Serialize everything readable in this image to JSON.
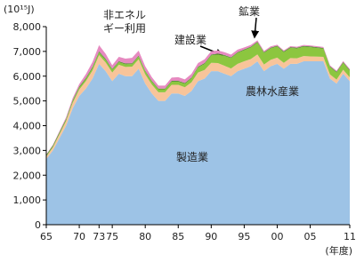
{
  "chart_data": {
    "type": "stacked_area",
    "y_label": "(10¹⁵J)",
    "x_label": "(年度)",
    "x": [
      1965,
      1966,
      1967,
      1968,
      1969,
      1970,
      1971,
      1972,
      1973,
      1974,
      1975,
      1976,
      1977,
      1978,
      1979,
      1980,
      1981,
      1982,
      1983,
      1984,
      1985,
      1986,
      1987,
      1988,
      1989,
      1990,
      1991,
      1992,
      1993,
      1994,
      1995,
      1996,
      1997,
      1998,
      1999,
      2000,
      2001,
      2002,
      2003,
      2004,
      2005,
      2006,
      2007,
      2008,
      2009,
      2010,
      2011
    ],
    "series": [
      {
        "name": "製造業",
        "color": "#9dc3e6",
        "values": [
          2650,
          3000,
          3500,
          4000,
          4700,
          5200,
          5500,
          5900,
          6500,
          6200,
          5800,
          6100,
          6000,
          6000,
          6300,
          5700,
          5300,
          5000,
          5000,
          5300,
          5300,
          5200,
          5400,
          5800,
          5900,
          6200,
          6200,
          6100,
          6000,
          6200,
          6300,
          6400,
          6600,
          6200,
          6400,
          6500,
          6300,
          6500,
          6500,
          6600,
          6600,
          6600,
          6600,
          5900,
          5700,
          6100,
          5800
        ]
      },
      {
        "name": "農林水産業",
        "color": "#f8c49a",
        "values": [
          100,
          120,
          150,
          180,
          220,
          260,
          300,
          330,
          350,
          350,
          350,
          360,
          370,
          380,
          380,
          370,
          360,
          350,
          350,
          350,
          350,
          350,
          350,
          350,
          350,
          340,
          330,
          320,
          310,
          300,
          300,
          290,
          280,
          270,
          260,
          250,
          240,
          230,
          220,
          210,
          200,
          190,
          180,
          170,
          160,
          160,
          150
        ]
      },
      {
        "name": "建設業",
        "color": "#8cc63f",
        "values": [
          30,
          40,
          50,
          60,
          70,
          80,
          90,
          100,
          110,
          110,
          110,
          110,
          110,
          110,
          120,
          120,
          120,
          120,
          120,
          130,
          130,
          140,
          160,
          200,
          250,
          300,
          350,
          400,
          420,
          440,
          450,
          470,
          480,
          470,
          460,
          450,
          430,
          410,
          400,
          380,
          370,
          350,
          330,
          300,
          290,
          280,
          270
        ]
      },
      {
        "name": "鉱業",
        "color": "#4a8a2a",
        "values": [
          40,
          40,
          40,
          40,
          40,
          40,
          40,
          40,
          40,
          40,
          30,
          30,
          30,
          30,
          30,
          30,
          30,
          30,
          30,
          30,
          30,
          30,
          30,
          30,
          30,
          30,
          30,
          30,
          30,
          30,
          30,
          30,
          30,
          30,
          30,
          30,
          30,
          30,
          30,
          30,
          30,
          30,
          30,
          30,
          30,
          30,
          30
        ]
      },
      {
        "name": "非エネルギー利用",
        "color": "#e68ac0",
        "values": [
          20,
          30,
          40,
          60,
          80,
          100,
          150,
          200,
          250,
          200,
          150,
          180,
          200,
          220,
          200,
          180,
          150,
          120,
          120,
          130,
          150,
          150,
          150,
          150,
          150,
          140,
          130,
          120,
          110,
          100,
          80,
          70,
          60,
          50,
          50,
          40,
          40,
          40,
          40,
          40,
          40,
          40,
          40,
          40,
          40,
          40,
          40
        ]
      }
    ],
    "xlim": [
      1965,
      2011
    ],
    "xticks": [
      {
        "value": 1965,
        "label": "65"
      },
      {
        "value": 1970,
        "label": "70"
      },
      {
        "value": 1973,
        "label": "73"
      },
      {
        "value": 1975,
        "label": "75"
      },
      {
        "value": 1980,
        "label": "80"
      },
      {
        "value": 1985,
        "label": "85"
      },
      {
        "value": 1990,
        "label": "90"
      },
      {
        "value": 1995,
        "label": "95"
      },
      {
        "value": 2000,
        "label": "00"
      },
      {
        "value": 2005,
        "label": "05"
      },
      {
        "value": 2011,
        "label": "11"
      }
    ],
    "ylim": [
      0,
      8000
    ],
    "yticks": [
      0,
      {
        "value": 1000,
        "label": "1,000"
      },
      {
        "value": 2000,
        "label": "2,000"
      },
      {
        "value": 3000,
        "label": "3,000"
      },
      {
        "value": 4000,
        "label": "4,000"
      },
      {
        "value": 5000,
        "label": "5,000"
      },
      {
        "value": 6000,
        "label": "6,000"
      },
      {
        "value": 7000,
        "label": "7,000"
      },
      {
        "value": 8000,
        "label": "8,000"
      }
    ]
  }
}
